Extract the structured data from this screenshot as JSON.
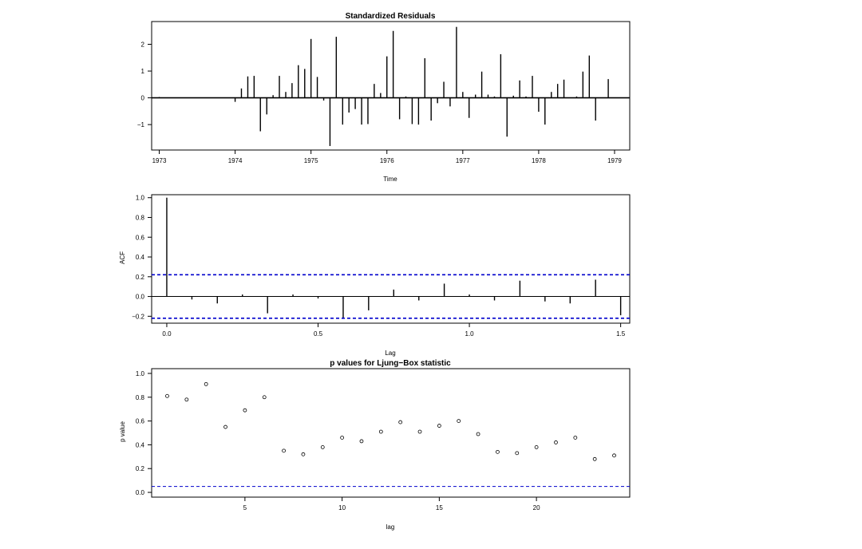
{
  "chart_data": [
    {
      "type": "bar",
      "title": "Standardized Residuals",
      "xlabel": "Time",
      "ylabel": "",
      "xlim": [
        1972.9,
        1979.2
      ],
      "ylim": [
        -1.95,
        2.85
      ],
      "xticks": [
        1973,
        1974,
        1975,
        1976,
        1977,
        1978,
        1979
      ],
      "yticks": [
        -1,
        0,
        1,
        2
      ],
      "x": [
        1973.0,
        1973.083,
        1973.167,
        1973.25,
        1973.333,
        1973.417,
        1973.5,
        1973.583,
        1973.667,
        1973.75,
        1973.833,
        1973.917,
        1974.0,
        1974.083,
        1974.167,
        1974.25,
        1974.333,
        1974.417,
        1974.5,
        1974.583,
        1974.667,
        1974.75,
        1974.833,
        1974.917,
        1975.0,
        1975.083,
        1975.167,
        1975.25,
        1975.333,
        1975.417,
        1975.5,
        1975.583,
        1975.667,
        1975.75,
        1975.833,
        1975.917,
        1976.0,
        1976.083,
        1976.167,
        1976.25,
        1976.333,
        1976.417,
        1976.5,
        1976.583,
        1976.667,
        1976.75,
        1976.833,
        1976.917,
        1977.0,
        1977.083,
        1977.167,
        1977.25,
        1977.333,
        1977.417,
        1977.5,
        1977.583,
        1977.667,
        1977.75,
        1977.833,
        1977.917,
        1978.0,
        1978.083,
        1978.167,
        1978.25,
        1978.333,
        1978.417,
        1978.5,
        1978.583,
        1978.667,
        1978.75,
        1978.833,
        1978.917
      ],
      "values": [
        0.03,
        0,
        0,
        0,
        0,
        0,
        0,
        0,
        0,
        0,
        0,
        0,
        -0.15,
        0.35,
        0.8,
        0.82,
        -1.25,
        -0.62,
        0.1,
        0.82,
        0.22,
        0.55,
        1.22,
        1.08,
        2.2,
        0.78,
        -0.1,
        -1.8,
        2.28,
        -1.0,
        -0.55,
        -0.42,
        -1.0,
        -0.98,
        0.52,
        0.18,
        1.55,
        2.5,
        -0.8,
        0.05,
        -0.98,
        -1.0,
        1.48,
        -0.85,
        -0.2,
        0.6,
        -0.32,
        2.65,
        0.22,
        -0.75,
        0.12,
        0.98,
        0.12,
        0.05,
        1.63,
        -1.45,
        0.08,
        0.65,
        0.05,
        0.82,
        -0.52,
        -1.0,
        0.22,
        0.52,
        0.68,
        0,
        0.05,
        0.98,
        1.58,
        -0.85,
        0,
        0.7
      ]
    },
    {
      "type": "bar",
      "title": "",
      "xlabel": "Lag",
      "ylabel": "ACF",
      "xlim": [
        -0.05,
        1.53
      ],
      "ylim": [
        -0.27,
        1.03
      ],
      "xticks": [
        0.0,
        0.5,
        1.0,
        1.5
      ],
      "xtick_labels": [
        "0.0",
        "0.5",
        "1.0",
        "1.5"
      ],
      "yticks": [
        -0.2,
        0.0,
        0.2,
        0.4,
        0.6,
        0.8,
        1.0
      ],
      "ytick_labels": [
        "−0.2",
        "0.0",
        "0.2",
        "0.4",
        "0.6",
        "0.8",
        "1.0"
      ],
      "confidence_bounds": [
        0.22,
        -0.22
      ],
      "bound_color": "#0000cc",
      "x": [
        0.0,
        0.083,
        0.167,
        0.25,
        0.333,
        0.417,
        0.5,
        0.583,
        0.667,
        0.75,
        0.833,
        0.917,
        1.0,
        1.083,
        1.167,
        1.25,
        1.333,
        1.417,
        1.5
      ],
      "values": [
        1.0,
        -0.03,
        -0.07,
        0.02,
        -0.17,
        0.02,
        -0.02,
        -0.22,
        -0.14,
        0.07,
        -0.04,
        0.13,
        0.02,
        -0.04,
        0.16,
        -0.05,
        -0.07,
        0.17,
        -0.19
      ]
    },
    {
      "type": "scatter",
      "title": "p values for Ljung−Box statistic",
      "xlabel": "lag",
      "ylabel": "p value",
      "xlim": [
        0.2,
        24.8
      ],
      "ylim": [
        -0.04,
        1.04
      ],
      "xticks": [
        5,
        10,
        15,
        20
      ],
      "yticks": [
        0.0,
        0.2,
        0.4,
        0.6,
        0.8,
        1.0
      ],
      "ytick_labels": [
        "0.0",
        "0.2",
        "0.4",
        "0.6",
        "0.8",
        "1.0"
      ],
      "reference_line": 0.05,
      "reference_color": "#0000cc",
      "x": [
        1,
        2,
        3,
        4,
        5,
        6,
        7,
        8,
        9,
        10,
        11,
        12,
        13,
        14,
        15,
        16,
        17,
        18,
        19,
        20,
        21,
        22,
        23,
        24
      ],
      "values": [
        0.81,
        0.78,
        0.91,
        0.55,
        0.69,
        0.8,
        0.35,
        0.32,
        0.38,
        0.46,
        0.43,
        0.51,
        0.59,
        0.51,
        0.56,
        0.6,
        0.49,
        0.34,
        0.33,
        0.38,
        0.42,
        0.46,
        0.28,
        0.31
      ]
    }
  ]
}
